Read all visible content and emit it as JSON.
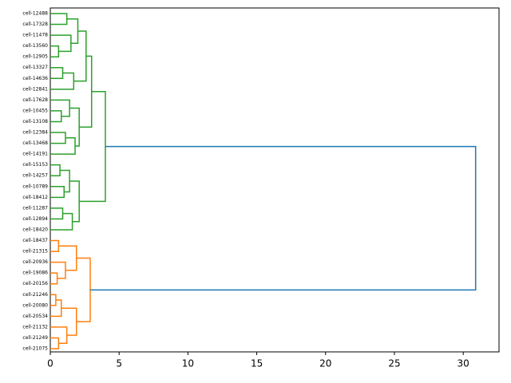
{
  "chart_data": {
    "type": "dendrogram",
    "xlim": [
      0,
      32.6
    ],
    "xticks": [
      0,
      5,
      10,
      15,
      20,
      25,
      30
    ],
    "tree": {
      "height": 30.9,
      "color": "#1f77b4",
      "children": [
        {
          "height": 4.0,
          "color": "#2ca02c",
          "children": [
            {
              "height": 3.0,
              "children": [
                {
                  "height": 2.6,
                  "children": [
                    {
                      "height": 2.0,
                      "children": [
                        {
                          "height": 1.2,
                          "children": [
                            {
                              "label": "cell-12488"
                            },
                            {
                              "label": "cell-17328"
                            }
                          ]
                        },
                        {
                          "height": 1.5,
                          "children": [
                            {
                              "label": "cell-11478"
                            },
                            {
                              "height": 0.6,
                              "children": [
                                {
                                  "label": "cell-13560"
                                },
                                {
                                  "label": "cell-12905"
                                }
                              ]
                            }
                          ]
                        }
                      ]
                    },
                    {
                      "height": 1.7,
                      "children": [
                        {
                          "height": 0.9,
                          "children": [
                            {
                              "label": "cell-13327"
                            },
                            {
                              "label": "cell-14636"
                            }
                          ]
                        },
                        {
                          "label": "cell-12841"
                        }
                      ]
                    }
                  ]
                },
                {
                  "height": 2.1,
                  "children": [
                    {
                      "height": 1.4,
                      "children": [
                        {
                          "label": "cell-17628"
                        },
                        {
                          "height": 0.8,
                          "children": [
                            {
                              "label": "cell-10455"
                            },
                            {
                              "label": "cell-13108"
                            }
                          ]
                        }
                      ]
                    },
                    {
                      "height": 1.8,
                      "children": [
                        {
                          "height": 1.1,
                          "children": [
                            {
                              "label": "cell-12384"
                            },
                            {
                              "label": "cell-13468"
                            }
                          ]
                        },
                        {
                          "label": "cell-14191"
                        }
                      ]
                    }
                  ]
                }
              ]
            },
            {
              "height": 2.1,
              "children": [
                {
                  "height": 1.4,
                  "children": [
                    {
                      "height": 0.7,
                      "children": [
                        {
                          "label": "cell-15153"
                        },
                        {
                          "label": "cell-14257"
                        }
                      ]
                    },
                    {
                      "height": 1.0,
                      "children": [
                        {
                          "label": "cell-10789"
                        },
                        {
                          "label": "cell-18412"
                        }
                      ]
                    }
                  ]
                },
                {
                  "height": 1.6,
                  "children": [
                    {
                      "height": 0.9,
                      "children": [
                        {
                          "label": "cell-11287"
                        },
                        {
                          "label": "cell-12894"
                        }
                      ]
                    },
                    {
                      "label": "cell-18420"
                    }
                  ]
                }
              ]
            }
          ]
        },
        {
          "height": 2.9,
          "color": "#ff7f0e",
          "children": [
            {
              "height": 1.9,
              "children": [
                {
                  "height": 0.6,
                  "children": [
                    {
                      "label": "cell-18437"
                    },
                    {
                      "label": "cell-21315"
                    }
                  ]
                },
                {
                  "height": 1.1,
                  "children": [
                    {
                      "label": "cell-20936"
                    },
                    {
                      "height": 0.5,
                      "children": [
                        {
                          "label": "cell-19086"
                        },
                        {
                          "label": "cell-20156"
                        }
                      ]
                    }
                  ]
                }
              ]
            },
            {
              "height": 1.9,
              "children": [
                {
                  "height": 0.8,
                  "children": [
                    {
                      "height": 0.4,
                      "children": [
                        {
                          "label": "cell-21246"
                        },
                        {
                          "label": "cell-20080"
                        }
                      ]
                    },
                    {
                      "label": "cell-20534"
                    }
                  ]
                },
                {
                  "height": 1.2,
                  "children": [
                    {
                      "label": "cell-21132"
                    },
                    {
                      "height": 0.6,
                      "children": [
                        {
                          "label": "cell-21249"
                        },
                        {
                          "label": "cell-21075"
                        }
                      ]
                    }
                  ]
                }
              ]
            }
          ]
        }
      ]
    }
  }
}
